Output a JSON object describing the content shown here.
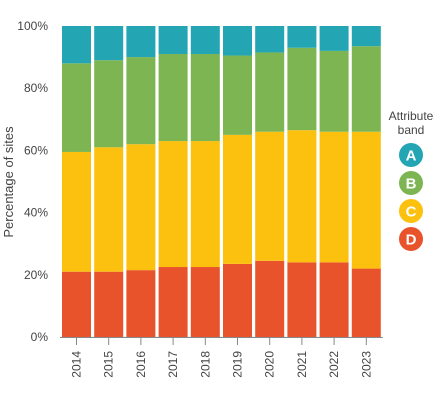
{
  "chart_data": {
    "type": "bar",
    "stacked": true,
    "orientation": "vertical",
    "categories": [
      "2014",
      "2015",
      "2016",
      "2017",
      "2018",
      "2019",
      "2020",
      "2021",
      "2022",
      "2023"
    ],
    "series": [
      {
        "name": "D",
        "color": "#e8532b",
        "values": [
          21,
          21,
          21.5,
          22.5,
          22.5,
          23.5,
          24.5,
          24,
          24,
          22
        ]
      },
      {
        "name": "C",
        "color": "#fcc10f",
        "values": [
          38.5,
          40,
          40.5,
          40.5,
          40.5,
          41.5,
          41.5,
          42.5,
          42,
          44
        ]
      },
      {
        "name": "B",
        "color": "#7db552",
        "values": [
          28.5,
          28,
          28,
          28,
          28,
          25.5,
          25.5,
          26.5,
          26,
          27.5
        ]
      },
      {
        "name": "A",
        "color": "#23a5b3",
        "values": [
          12,
          11,
          10,
          9,
          9,
          9.5,
          8.5,
          7,
          8,
          6.5
        ]
      }
    ],
    "xlabel": "",
    "ylabel": "Percentage of sites",
    "ylim": [
      0,
      100
    ],
    "yticks": [
      0,
      20,
      40,
      60,
      80,
      100
    ],
    "ytick_labels": [
      "0%",
      "20%",
      "40%",
      "60%",
      "80%",
      "100%"
    ],
    "legend": {
      "title_lines": [
        "Attribute",
        "band"
      ],
      "placement": "right",
      "items": [
        "A",
        "B",
        "C",
        "D"
      ]
    },
    "grid": false
  }
}
